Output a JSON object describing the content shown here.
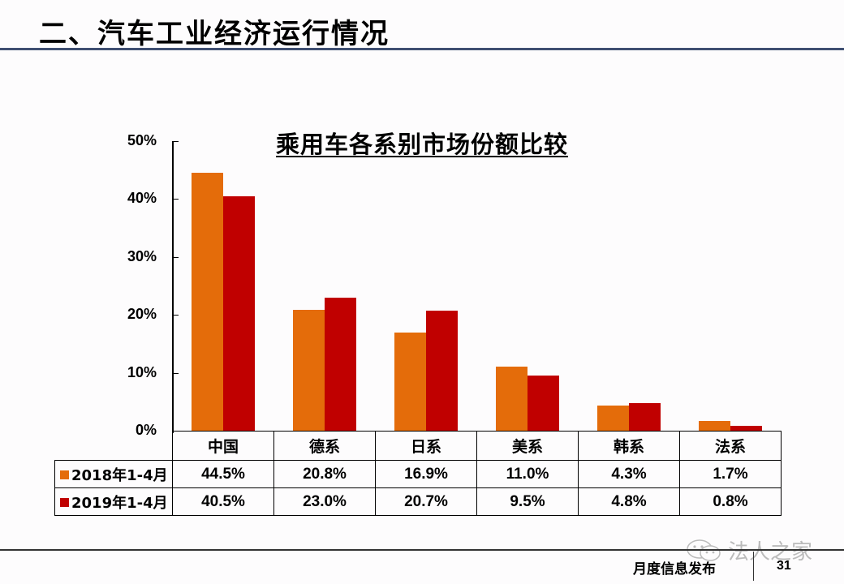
{
  "header": {
    "title": "二、汽车工业经济运行情况"
  },
  "chart_data": {
    "type": "bar",
    "title": "乘用车各系别市场份额比较",
    "xlabel": "",
    "ylabel": "",
    "ylim": [
      0,
      50
    ],
    "yticks": [
      "0%",
      "10%",
      "20%",
      "30%",
      "40%",
      "50%"
    ],
    "grid": false,
    "legend_position": "in data table (left column)",
    "categories": [
      "中国",
      "德系",
      "日系",
      "美系",
      "韩系",
      "法系"
    ],
    "series": [
      {
        "name": "2018年1-4月",
        "color": "#e46c0a",
        "values": [
          44.5,
          20.8,
          16.9,
          11.0,
          4.3,
          1.7
        ],
        "labels": [
          "44.5%",
          "20.8%",
          "16.9%",
          "11.0%",
          "4.3%",
          "1.7%"
        ]
      },
      {
        "name": "2019年1-4月",
        "color": "#c00000",
        "values": [
          40.5,
          23.0,
          20.7,
          9.5,
          4.8,
          0.8
        ],
        "labels": [
          "40.5%",
          "23.0%",
          "20.7%",
          "9.5%",
          "4.8%",
          "0.8%"
        ]
      }
    ]
  },
  "footer": {
    "publication": "月度信息发布",
    "page_number": "31",
    "watermark": "法人之家",
    "watermark_icon": "wechat-icon"
  }
}
